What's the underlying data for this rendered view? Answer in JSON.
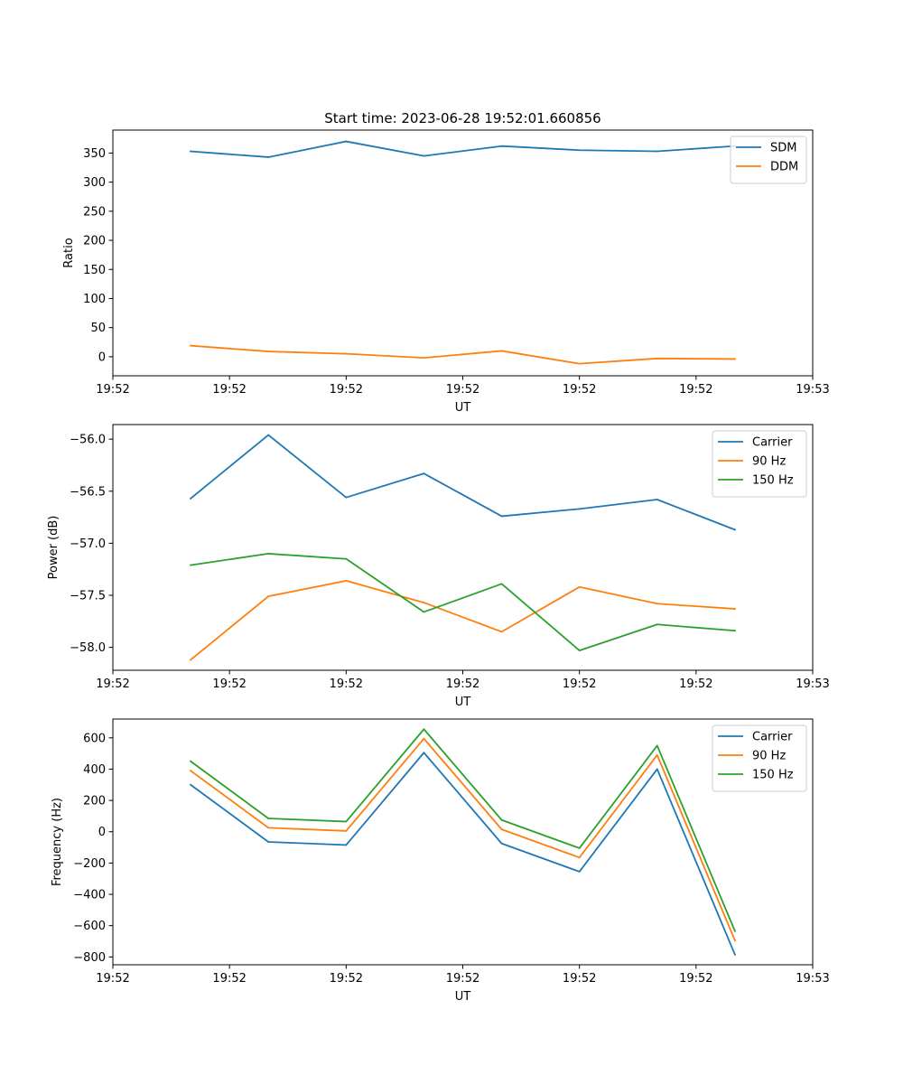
{
  "figure_title": "Start time: 2023-06-28 19:52:01.660856",
  "colors": {
    "blue": "#1f77b4",
    "orange": "#ff7f0e",
    "green": "#2ca02c"
  },
  "chart_data": [
    {
      "type": "line",
      "title": "Start time: 2023-06-28 19:52:01.660856",
      "xlabel": "UT",
      "ylabel": "Ratio",
      "x": [
        1,
        2,
        3,
        4,
        5,
        6,
        7,
        8
      ],
      "xlim": [
        0,
        9
      ],
      "xticks": [
        0,
        1.5,
        3,
        4.5,
        6,
        7.5,
        9
      ],
      "xtick_labels": [
        "19:52",
        "19:52",
        "19:52",
        "19:52",
        "19:52",
        "19:52",
        "19:53"
      ],
      "ylim": [
        -32.8,
        389.5
      ],
      "yticks": [
        0,
        50,
        100,
        150,
        200,
        250,
        300,
        350
      ],
      "ytick_labels": [
        "0",
        "50",
        "100",
        "150",
        "200",
        "250",
        "300",
        "350"
      ],
      "legend": "upper right",
      "series": [
        {
          "name": "SDM",
          "color": "#1f77b4",
          "values": [
            353,
            343,
            370,
            345,
            362,
            355,
            353,
            362
          ]
        },
        {
          "name": "DDM",
          "color": "#ff7f0e",
          "values": [
            19,
            9,
            5,
            -2,
            10,
            -12,
            -3,
            -4
          ]
        }
      ]
    },
    {
      "type": "line",
      "title": "",
      "xlabel": "UT",
      "ylabel": "Power (dB)",
      "x": [
        1,
        2,
        3,
        4,
        5,
        6,
        7,
        8
      ],
      "xlim": [
        0,
        9
      ],
      "xticks": [
        0,
        1.5,
        3,
        4.5,
        6,
        7.5,
        9
      ],
      "xtick_labels": [
        "19:52",
        "19:52",
        "19:52",
        "19:52",
        "19:52",
        "19:52",
        "19:53"
      ],
      "ylim": [
        -58.22,
        -55.86
      ],
      "yticks": [
        -56.0,
        -56.5,
        -57.0,
        -57.5,
        -58.0
      ],
      "ytick_labels": [
        "−56.0",
        "−56.5",
        "−57.0",
        "−57.5",
        "−58.0"
      ],
      "legend": "upper right",
      "series": [
        {
          "name": "Carrier",
          "color": "#1f77b4",
          "values": [
            -56.57,
            -55.96,
            -56.56,
            -56.33,
            -56.74,
            -56.67,
            -56.58,
            -56.87
          ]
        },
        {
          "name": "90 Hz",
          "color": "#ff7f0e",
          "values": [
            -58.12,
            -57.51,
            -57.36,
            -57.57,
            -57.85,
            -57.42,
            -57.58,
            -57.63
          ]
        },
        {
          "name": "150 Hz",
          "color": "#2ca02c",
          "values": [
            -57.21,
            -57.1,
            -57.15,
            -57.66,
            -57.39,
            -58.03,
            -57.78,
            -57.84
          ]
        }
      ]
    },
    {
      "type": "line",
      "title": "",
      "xlabel": "UT",
      "ylabel": "Frequency (Hz)",
      "x": [
        1,
        2,
        3,
        4,
        5,
        6,
        7,
        8
      ],
      "xlim": [
        0,
        9
      ],
      "xticks": [
        0,
        1.5,
        3,
        4.5,
        6,
        7.5,
        9
      ],
      "xtick_labels": [
        "19:52",
        "19:52",
        "19:52",
        "19:52",
        "19:52",
        "19:52",
        "19:53"
      ],
      "ylim": [
        -850,
        720
      ],
      "yticks": [
        600,
        400,
        200,
        0,
        -200,
        -400,
        -600,
        -800
      ],
      "ytick_labels": [
        "600",
        "400",
        "200",
        "0",
        "−200",
        "−400",
        "−600",
        "−800"
      ],
      "legend": "upper right",
      "series": [
        {
          "name": "Carrier",
          "color": "#1f77b4",
          "values": [
            300,
            -65,
            -85,
            505,
            -75,
            -255,
            400,
            -785
          ]
        },
        {
          "name": "90 Hz",
          "color": "#ff7f0e",
          "values": [
            390,
            25,
            5,
            595,
            15,
            -165,
            490,
            -695
          ]
        },
        {
          "name": "150 Hz",
          "color": "#2ca02c",
          "values": [
            450,
            85,
            65,
            655,
            75,
            -105,
            550,
            -635
          ]
        }
      ]
    }
  ]
}
